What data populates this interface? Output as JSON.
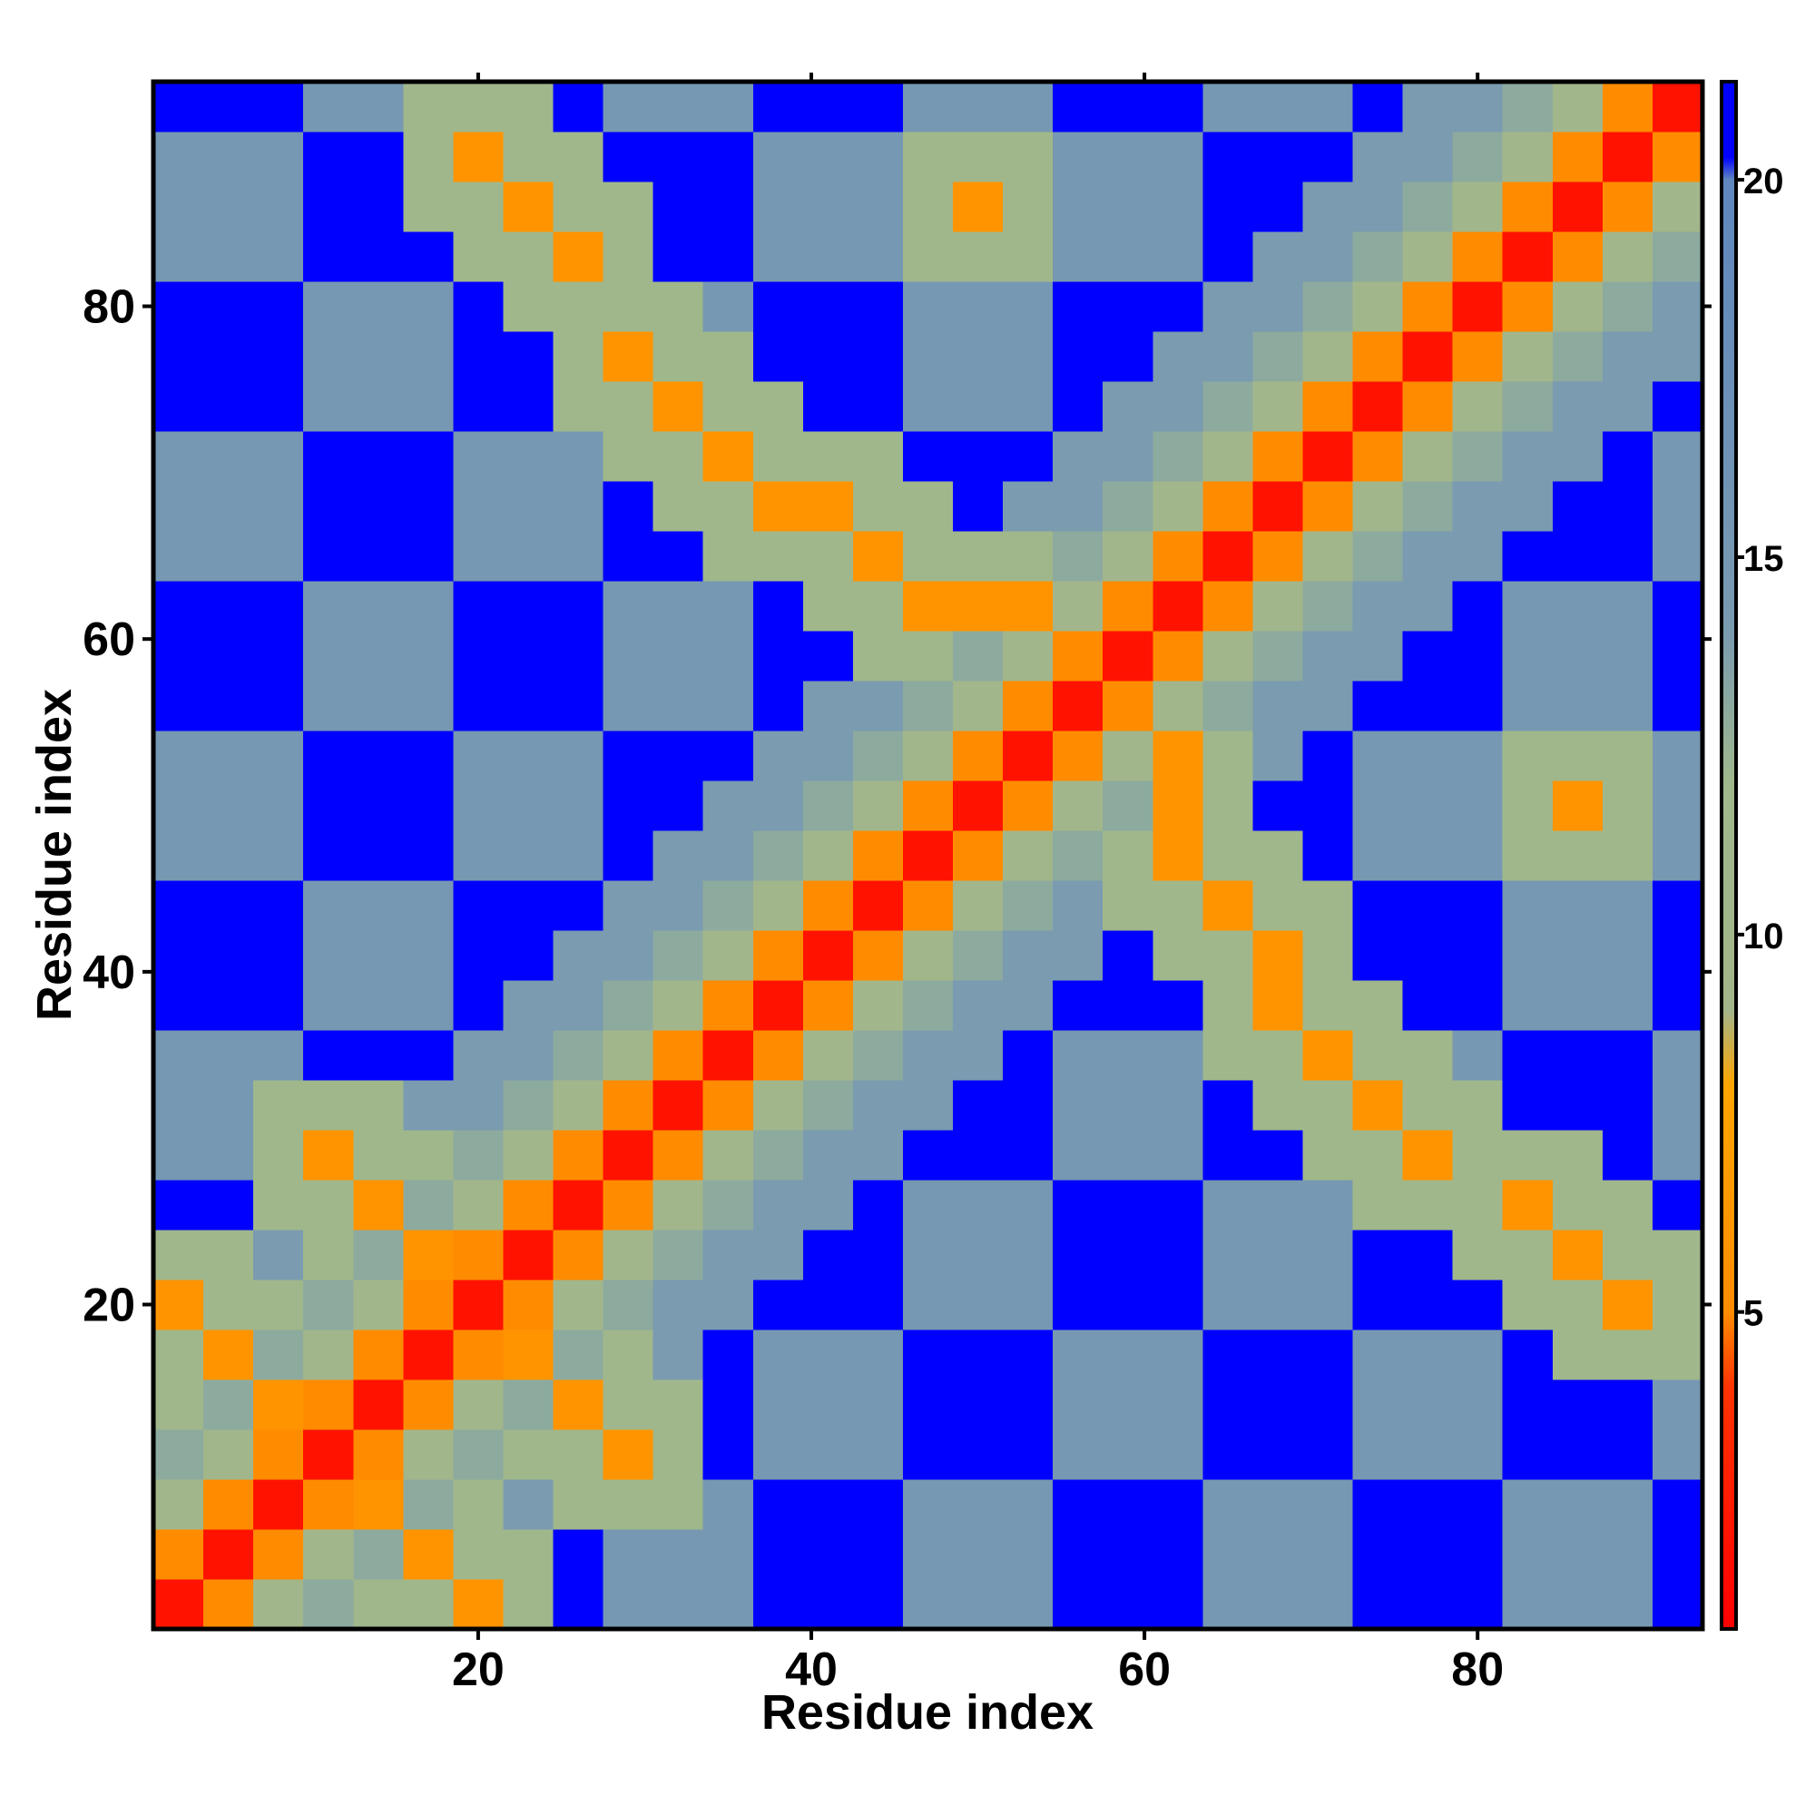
{
  "chart_data": {
    "type": "heatmap",
    "xlabel": "Residue index",
    "ylabel": "Residue index",
    "x": [
      2,
      5,
      8,
      11,
      14,
      17,
      20,
      23,
      26,
      29,
      32,
      35,
      38,
      41,
      44,
      47,
      50,
      53,
      56,
      59,
      62,
      65,
      68,
      71,
      74,
      77,
      80,
      83,
      86,
      89,
      92
    ],
    "y": [
      2,
      5,
      8,
      11,
      14,
      17,
      20,
      23,
      26,
      29,
      32,
      35,
      38,
      41,
      44,
      47,
      50,
      53,
      56,
      59,
      62,
      65,
      68,
      71,
      74,
      77,
      80,
      83,
      86,
      89,
      92
    ],
    "xlim": [
      0.5,
      93.5
    ],
    "ylim": [
      0.5,
      93.5
    ],
    "xticks": [
      20,
      40,
      60,
      80
    ],
    "yticks": [
      20,
      40,
      60,
      80
    ],
    "z": [
      [
        2,
        5,
        10,
        13,
        11,
        11,
        6,
        11,
        21,
        15,
        15,
        15,
        21,
        21,
        21,
        15,
        15,
        15,
        21,
        21,
        21,
        15,
        15,
        15,
        21,
        21,
        21,
        15,
        15,
        15,
        21
      ],
      [
        5,
        2,
        5,
        10,
        13,
        6,
        11,
        11,
        21,
        15,
        15,
        15,
        21,
        21,
        21,
        15,
        15,
        15,
        21,
        21,
        21,
        15,
        15,
        15,
        21,
        21,
        21,
        15,
        15,
        15,
        21
      ],
      [
        10,
        5,
        2,
        5,
        6,
        13,
        11,
        14,
        11,
        11,
        11,
        15,
        21,
        21,
        21,
        15,
        15,
        15,
        21,
        21,
        21,
        15,
        15,
        15,
        21,
        21,
        21,
        15,
        15,
        15,
        21
      ],
      [
        13,
        10,
        5,
        2,
        5,
        10,
        13,
        11,
        11,
        6,
        11,
        21,
        15,
        15,
        15,
        21,
        21,
        21,
        15,
        15,
        15,
        21,
        21,
        21,
        15,
        15,
        15,
        21,
        21,
        21,
        15
      ],
      [
        11,
        13,
        6,
        5,
        2,
        5,
        10,
        13,
        6,
        11,
        11,
        21,
        15,
        15,
        15,
        21,
        21,
        21,
        15,
        15,
        15,
        21,
        21,
        21,
        15,
        15,
        15,
        21,
        21,
        21,
        15
      ],
      [
        11,
        6,
        13,
        10,
        5,
        2,
        5,
        6,
        13,
        11,
        14,
        21,
        15,
        15,
        15,
        21,
        21,
        21,
        15,
        15,
        15,
        21,
        21,
        21,
        15,
        15,
        15,
        21,
        11,
        11,
        11
      ],
      [
        6,
        11,
        11,
        13,
        10,
        5,
        2,
        5,
        10,
        13,
        14,
        14,
        21,
        21,
        21,
        15,
        15,
        15,
        21,
        21,
        21,
        15,
        15,
        15,
        21,
        21,
        21,
        11,
        11,
        6,
        11
      ],
      [
        11,
        11,
        14,
        11,
        13,
        6,
        5,
        2,
        5,
        10,
        13,
        14,
        14,
        21,
        21,
        15,
        15,
        15,
        21,
        21,
        21,
        15,
        15,
        15,
        21,
        21,
        11,
        11,
        6,
        11,
        11
      ],
      [
        21,
        21,
        11,
        11,
        6,
        13,
        10,
        5,
        2,
        5,
        10,
        13,
        14,
        14,
        21,
        15,
        15,
        15,
        21,
        21,
        21,
        15,
        15,
        15,
        11,
        11,
        11,
        6,
        11,
        11,
        21
      ],
      [
        15,
        15,
        11,
        6,
        11,
        11,
        13,
        10,
        5,
        2,
        5,
        10,
        13,
        14,
        14,
        21,
        21,
        21,
        15,
        15,
        15,
        21,
        21,
        11,
        11,
        6,
        11,
        11,
        11,
        21,
        15
      ],
      [
        15,
        15,
        11,
        11,
        11,
        14,
        14,
        13,
        10,
        5,
        2,
        5,
        10,
        13,
        14,
        14,
        21,
        21,
        15,
        15,
        15,
        21,
        11,
        11,
        6,
        11,
        11,
        21,
        21,
        21,
        15
      ],
      [
        15,
        15,
        15,
        21,
        21,
        21,
        14,
        14,
        13,
        10,
        5,
        2,
        5,
        10,
        13,
        14,
        14,
        21,
        15,
        15,
        15,
        11,
        11,
        6,
        11,
        11,
        15,
        21,
        21,
        21,
        15
      ],
      [
        21,
        21,
        21,
        15,
        15,
        15,
        21,
        14,
        14,
        13,
        10,
        5,
        2,
        5,
        10,
        13,
        14,
        14,
        21,
        21,
        21,
        11,
        6,
        11,
        11,
        21,
        21,
        15,
        15,
        15,
        21
      ],
      [
        21,
        21,
        21,
        15,
        15,
        15,
        21,
        21,
        14,
        14,
        13,
        10,
        5,
        2,
        5,
        10,
        13,
        14,
        14,
        21,
        11,
        11,
        6,
        11,
        21,
        21,
        21,
        15,
        15,
        15,
        21
      ],
      [
        21,
        21,
        21,
        15,
        15,
        15,
        21,
        21,
        21,
        14,
        14,
        13,
        10,
        5,
        2,
        5,
        10,
        13,
        14,
        11,
        11,
        6,
        11,
        11,
        21,
        21,
        21,
        15,
        15,
        15,
        21
      ],
      [
        15,
        15,
        15,
        21,
        21,
        21,
        15,
        15,
        15,
        21,
        14,
        14,
        13,
        10,
        5,
        2,
        5,
        10,
        13,
        11,
        6,
        11,
        11,
        21,
        15,
        15,
        15,
        11,
        11,
        11,
        15
      ],
      [
        15,
        15,
        15,
        21,
        21,
        21,
        15,
        15,
        15,
        21,
        21,
        14,
        14,
        13,
        10,
        5,
        2,
        5,
        10,
        13,
        6,
        11,
        21,
        21,
        15,
        15,
        15,
        11,
        6,
        11,
        15
      ],
      [
        15,
        15,
        15,
        21,
        21,
        21,
        15,
        15,
        15,
        21,
        21,
        21,
        14,
        14,
        13,
        10,
        5,
        2,
        5,
        10,
        6,
        11,
        14,
        21,
        15,
        15,
        15,
        11,
        11,
        11,
        15
      ],
      [
        21,
        21,
        21,
        15,
        15,
        15,
        21,
        21,
        21,
        15,
        15,
        15,
        21,
        14,
        14,
        13,
        10,
        5,
        2,
        5,
        10,
        13,
        14,
        14,
        21,
        21,
        21,
        15,
        15,
        15,
        21
      ],
      [
        21,
        21,
        21,
        15,
        15,
        15,
        21,
        21,
        21,
        15,
        15,
        15,
        21,
        21,
        11,
        11,
        13,
        10,
        5,
        2,
        5,
        10,
        13,
        14,
        14,
        21,
        21,
        15,
        15,
        15,
        21
      ],
      [
        21,
        21,
        21,
        15,
        15,
        15,
        21,
        21,
        21,
        15,
        15,
        15,
        21,
        11,
        11,
        6,
        6,
        6,
        10,
        5,
        2,
        5,
        10,
        13,
        14,
        14,
        21,
        15,
        15,
        15,
        21
      ],
      [
        15,
        15,
        15,
        21,
        21,
        21,
        15,
        15,
        15,
        21,
        21,
        11,
        11,
        11,
        6,
        11,
        11,
        11,
        13,
        10,
        5,
        2,
        5,
        10,
        13,
        14,
        14,
        21,
        21,
        21,
        15
      ],
      [
        15,
        15,
        15,
        21,
        21,
        21,
        15,
        15,
        15,
        21,
        11,
        11,
        6,
        6,
        11,
        11,
        21,
        14,
        14,
        13,
        10,
        5,
        2,
        5,
        10,
        13,
        14,
        14,
        21,
        21,
        15
      ],
      [
        15,
        15,
        15,
        21,
        21,
        21,
        15,
        15,
        15,
        11,
        11,
        6,
        11,
        11,
        11,
        21,
        21,
        21,
        14,
        14,
        13,
        10,
        5,
        2,
        5,
        10,
        13,
        14,
        14,
        21,
        15
      ],
      [
        21,
        21,
        21,
        15,
        15,
        15,
        21,
        21,
        11,
        11,
        6,
        11,
        11,
        21,
        21,
        15,
        15,
        15,
        21,
        14,
        14,
        13,
        10,
        5,
        2,
        5,
        10,
        13,
        14,
        14,
        21
      ],
      [
        21,
        21,
        21,
        15,
        15,
        15,
        21,
        21,
        11,
        6,
        11,
        11,
        21,
        21,
        21,
        15,
        15,
        15,
        21,
        21,
        14,
        14,
        13,
        10,
        5,
        2,
        5,
        10,
        13,
        14,
        14
      ],
      [
        21,
        21,
        21,
        15,
        15,
        15,
        21,
        11,
        11,
        11,
        11,
        15,
        21,
        21,
        21,
        15,
        15,
        15,
        21,
        21,
        21,
        14,
        14,
        13,
        10,
        5,
        2,
        5,
        10,
        13,
        14
      ],
      [
        15,
        15,
        15,
        21,
        21,
        21,
        11,
        11,
        6,
        11,
        21,
        21,
        15,
        15,
        15,
        11,
        11,
        11,
        15,
        15,
        15,
        21,
        14,
        14,
        13,
        10,
        5,
        2,
        5,
        10,
        13
      ],
      [
        15,
        15,
        15,
        21,
        21,
        11,
        11,
        6,
        11,
        11,
        21,
        21,
        15,
        15,
        15,
        11,
        6,
        11,
        15,
        15,
        15,
        21,
        21,
        14,
        14,
        13,
        10,
        5,
        2,
        5,
        10
      ],
      [
        15,
        15,
        15,
        21,
        21,
        11,
        6,
        11,
        11,
        21,
        21,
        21,
        15,
        15,
        15,
        11,
        11,
        11,
        15,
        15,
        15,
        21,
        21,
        21,
        14,
        14,
        13,
        10,
        5,
        2,
        5
      ],
      [
        21,
        21,
        21,
        15,
        15,
        11,
        11,
        11,
        21,
        15,
        15,
        15,
        21,
        21,
        21,
        15,
        15,
        15,
        21,
        21,
        21,
        15,
        15,
        15,
        21,
        14,
        14,
        13,
        10,
        5,
        2
      ]
    ],
    "colorbar": {
      "lim": [
        0.8,
        21.3
      ],
      "ticks": [
        5,
        10,
        15,
        20
      ],
      "colorscale": [
        [
          0.8,
          "#ff0000"
        ],
        [
          4,
          "#ff3300"
        ],
        [
          5,
          "#ff8c00"
        ],
        [
          8,
          "#ffa500"
        ],
        [
          9,
          "#a3b58a"
        ],
        [
          12,
          "#9fb88c"
        ],
        [
          14,
          "#7a9bb0"
        ],
        [
          20,
          "#5f87be"
        ],
        [
          20.3,
          "#0000ff"
        ],
        [
          21.3,
          "#0000ff"
        ]
      ]
    }
  }
}
